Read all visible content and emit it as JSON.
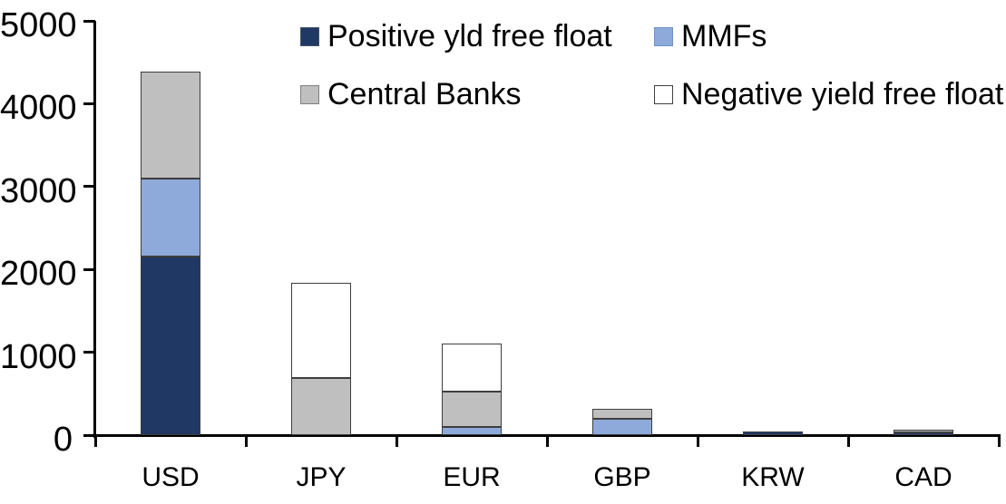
{
  "chart_data": {
    "type": "bar",
    "stacked": true,
    "title": "",
    "xlabel": "",
    "ylabel": "",
    "categories": [
      "USD",
      "JPY",
      "EUR",
      "GBP",
      "KRW",
      "CAD"
    ],
    "series": [
      {
        "name": "Positive yld free float",
        "color": "#1F3864",
        "swatch_border": "#44546A",
        "values": [
          2150,
          0,
          0,
          0,
          40,
          30
        ]
      },
      {
        "name": "MMFs",
        "color": "#8EAADB",
        "swatch_border": "#7092C8",
        "values": [
          950,
          0,
          100,
          200,
          0,
          0
        ]
      },
      {
        "name": "Central Banks",
        "color": "#BFBFBF",
        "swatch_border": "#808080",
        "values": [
          1290,
          690,
          430,
          120,
          0,
          35
        ]
      },
      {
        "name": "Negative yield free float",
        "color": "#FFFFFF",
        "swatch_border": "#404040",
        "values": [
          0,
          1150,
          570,
          0,
          0,
          0
        ]
      }
    ],
    "totals": [
      4390,
      1840,
      1100,
      320,
      40,
      65
    ],
    "ylim": [
      0,
      5000
    ],
    "yticks": [
      0,
      1000,
      2000,
      3000,
      4000,
      5000
    ],
    "ytick_labels": [
      "0",
      "1000",
      "2000",
      "3000",
      "4000",
      "5000"
    ],
    "legend_position": "top",
    "grid": false,
    "axis_color": "#000000",
    "bar_border_color": "#3E3E3E",
    "background_color": "#FFFFFF"
  }
}
